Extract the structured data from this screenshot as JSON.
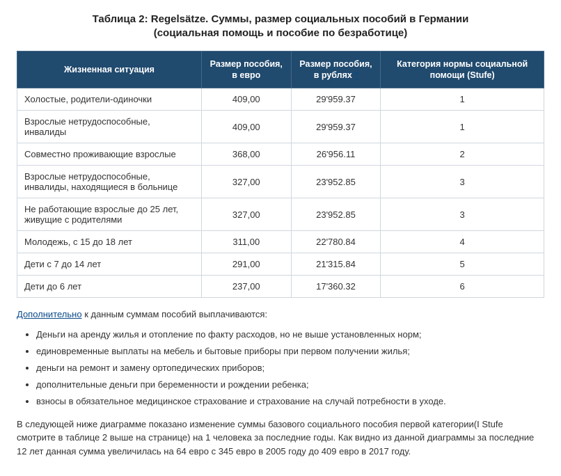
{
  "title_line1": "Таблица 2: Regelsätze. Суммы, размер социальных пособий в Германии",
  "title_line2": "(социальная помощь и пособие по безработице)",
  "table": {
    "columns": [
      "Жизненная ситуация",
      "Размер пособия, в евро",
      "Размер пособия, в рублях",
      "Категория нормы социальной помощи (Stufe)"
    ],
    "col3_suffix_link": "*",
    "rows": [
      {
        "situation": "Холостые, родители-одиночки",
        "eur": "409,00",
        "rub": "29'959.37",
        "stufe": "1"
      },
      {
        "situation": "Взрослые нетрудоспособные, инвалиды",
        "eur": "409,00",
        "rub": "29'959.37",
        "stufe": "1"
      },
      {
        "situation": "Совместно проживающие взрослые",
        "eur": "368,00",
        "rub": "26'956.11",
        "stufe": "2"
      },
      {
        "situation": "Взрослые нетрудоспособные, инвалиды, находящиеся в больнице",
        "eur": "327,00",
        "rub": "23'952.85",
        "stufe": "3"
      },
      {
        "situation": "Не работающие взрослые до 25 лет, живущие с родителями",
        "eur": "327,00",
        "rub": "23'952.85",
        "stufe": "3"
      },
      {
        "situation": "Молодежь, с 15 до 18 лет",
        "eur": "311,00",
        "rub": "22'780.84",
        "stufe": "4"
      },
      {
        "situation": "Дети с 7 до 14 лет",
        "eur": "291,00",
        "rub": "21'315.84",
        "stufe": "5"
      },
      {
        "situation": "Дети до 6 лет",
        "eur": "237,00",
        "rub": "17'360.32",
        "stufe": "6"
      }
    ],
    "header_bg": "#204a6e",
    "header_fg": "#ffffff",
    "border_color": "#d0d7de"
  },
  "after": {
    "lead_link": "Дополнительно",
    "lead_rest": " к данным суммам пособий выплачиваются:",
    "bullets": [
      "Деньги на аренду жилья и отопление по факту расходов, но не выше установленных норм;",
      "единовременные выплаты на мебель и бытовые приборы при первом получении жилья;",
      "деньги на ремонт и замену ортопедических приборов;",
      "дополнительные деньги при беременности и рождении ребенка;",
      "взносы в обязательное медицинское страхование и страхование на случай потребности в уходе."
    ],
    "paragraph": "В следующей ниже диаграмме показано изменение суммы базового социального пособия первой категории(I Stufe смотрите в таблице 2 выше на странице) на 1 человека за последние годы. Как видно из данной диаграммы за последние 12 лет данная сумма увеличилась на 64 евро с 345 евро в 2005 году до 409 евро в 2017 году."
  }
}
